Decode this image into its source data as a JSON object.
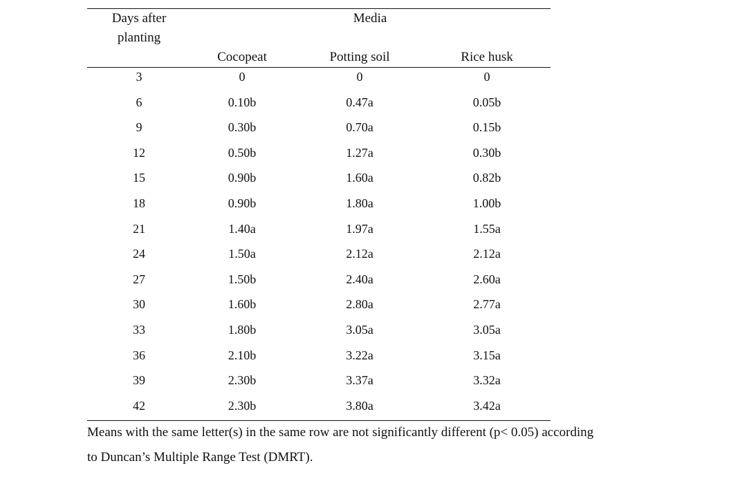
{
  "table": {
    "headers": {
      "days_line1": "Days after",
      "days_line2": "planting",
      "media": "Media",
      "cocopeat": "Cocopeat",
      "potting_soil": "Potting soil",
      "rice_husk": "Rice husk"
    },
    "rows": [
      {
        "day": "3",
        "cocopeat": "0",
        "potting_soil": "0",
        "rice_husk": "0"
      },
      {
        "day": "6",
        "cocopeat": "0.10b",
        "potting_soil": "0.47a",
        "rice_husk": "0.05b"
      },
      {
        "day": "9",
        "cocopeat": "0.30b",
        "potting_soil": "0.70a",
        "rice_husk": "0.15b"
      },
      {
        "day": "12",
        "cocopeat": "0.50b",
        "potting_soil": "1.27a",
        "rice_husk": "0.30b"
      },
      {
        "day": "15",
        "cocopeat": "0.90b",
        "potting_soil": "1.60a",
        "rice_husk": "0.82b"
      },
      {
        "day": "18",
        "cocopeat": "0.90b",
        "potting_soil": "1.80a",
        "rice_husk": "1.00b"
      },
      {
        "day": "21",
        "cocopeat": "1.40a",
        "potting_soil": "1.97a",
        "rice_husk": "1.55a"
      },
      {
        "day": "24",
        "cocopeat": "1.50a",
        "potting_soil": "2.12a",
        "rice_husk": "2.12a"
      },
      {
        "day": "27",
        "cocopeat": "1.50b",
        "potting_soil": "2.40a",
        "rice_husk": "2.60a"
      },
      {
        "day": "30",
        "cocopeat": "1.60b",
        "potting_soil": "2.80a",
        "rice_husk": "2.77a"
      },
      {
        "day": "33",
        "cocopeat": "1.80b",
        "potting_soil": "3.05a",
        "rice_husk": "3.05a"
      },
      {
        "day": "36",
        "cocopeat": "2.10b",
        "potting_soil": "3.22a",
        "rice_husk": "3.15a"
      },
      {
        "day": "39",
        "cocopeat": "2.30b",
        "potting_soil": "3.37a",
        "rice_husk": "3.32a"
      },
      {
        "day": "42",
        "cocopeat": "2.30b",
        "potting_soil": "3.80a",
        "rice_husk": "3.42a"
      }
    ]
  },
  "footnote": {
    "line1": "Means with the same letter(s) in the same row are not significantly different (p< 0.05) according",
    "line2": "to Duncan’s Multiple Range Test (DMRT)."
  }
}
